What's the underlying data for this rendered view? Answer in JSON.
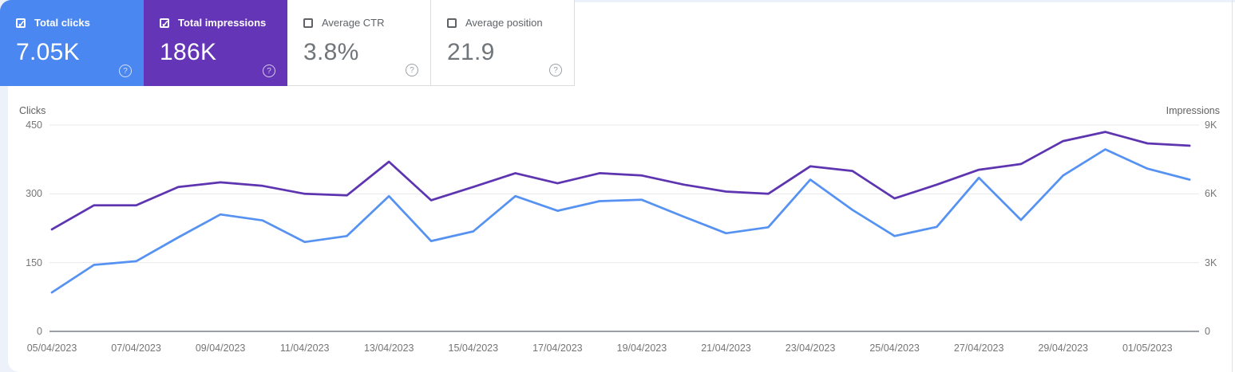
{
  "cards": [
    {
      "label": "Total clicks",
      "value": "7.05K",
      "checked": true,
      "color": "#4b87f0"
    },
    {
      "label": "Total impressions",
      "value": "186K",
      "checked": true,
      "color": "#6435b6"
    },
    {
      "label": "Average CTR",
      "value": "3.8%",
      "checked": false,
      "color": null
    },
    {
      "label": "Average position",
      "value": "21.9",
      "checked": false,
      "color": null
    }
  ],
  "chart": {
    "left_axis_title": "Clicks",
    "right_axis_title": "Impressions",
    "left_ticks": [
      {
        "label": "450",
        "value": 450
      },
      {
        "label": "300",
        "value": 300
      },
      {
        "label": "150",
        "value": 150
      },
      {
        "label": "0",
        "value": 0
      }
    ],
    "right_ticks": [
      {
        "label": "9K",
        "value": 9000
      },
      {
        "label": "6K",
        "value": 6000
      },
      {
        "label": "3K",
        "value": 3000
      },
      {
        "label": "0",
        "value": 0
      }
    ],
    "grid_color": "#e9eaee",
    "baseline_color": "#9aa0a6"
  },
  "chart_data": {
    "type": "line",
    "x": [
      "05/04/2023",
      "06/04/2023",
      "07/04/2023",
      "08/04/2023",
      "09/04/2023",
      "10/04/2023",
      "11/04/2023",
      "12/04/2023",
      "13/04/2023",
      "14/04/2023",
      "15/04/2023",
      "16/04/2023",
      "17/04/2023",
      "18/04/2023",
      "19/04/2023",
      "20/04/2023",
      "21/04/2023",
      "22/04/2023",
      "23/04/2023",
      "24/04/2023",
      "25/04/2023",
      "26/04/2023",
      "27/04/2023",
      "28/04/2023",
      "29/04/2023",
      "30/04/2023",
      "01/05/2023",
      "02/05/2023"
    ],
    "x_tick_labels": [
      "05/04/2023",
      "07/04/2023",
      "09/04/2023",
      "11/04/2023",
      "13/04/2023",
      "15/04/2023",
      "17/04/2023",
      "19/04/2023",
      "21/04/2023",
      "23/04/2023",
      "25/04/2023",
      "27/04/2023",
      "29/04/2023",
      "01/05/2023"
    ],
    "series": [
      {
        "name": "Clicks",
        "axis": "left",
        "color": "#5692f2",
        "values": [
          85,
          145,
          153,
          205,
          255,
          242,
          195,
          208,
          295,
          197,
          218,
          295,
          263,
          284,
          287,
          250,
          214,
          227,
          331,
          265,
          208,
          228,
          335,
          243,
          340,
          397,
          355,
          331
        ]
      },
      {
        "name": "Impressions",
        "axis": "right",
        "color": "#5e35b1",
        "values": [
          4450,
          5500,
          5500,
          6300,
          6500,
          6350,
          6000,
          5930,
          7400,
          5720,
          6300,
          6900,
          6460,
          6900,
          6800,
          6400,
          6100,
          6000,
          7200,
          7000,
          5800,
          6400,
          7050,
          7300,
          8300,
          8700,
          8200,
          8100
        ]
      }
    ],
    "left_ylim": [
      0,
      450
    ],
    "right_ylim": [
      0,
      9000
    ],
    "grid": true,
    "legend_position": "none",
    "title": ""
  }
}
